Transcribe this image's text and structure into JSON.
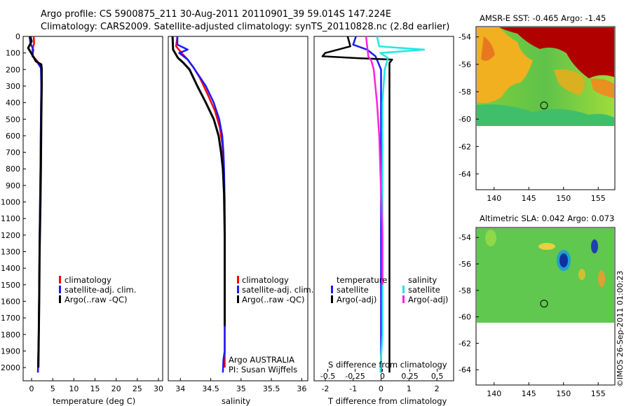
{
  "header": {
    "line1": "Argo profile: CS 5900875_211 30-Aug-2011 20110901_39 59.014S 147.224E",
    "line2": "Climatology: CARS2009. Satellite-adjusted climatology: synTS_20110828.nc (2.8d earlier)"
  },
  "colors": {
    "climatology": "#ff0000",
    "satellite_clim": "#1a1aff",
    "argo": "#000000",
    "sal_satellite": "#22e6e6",
    "sal_argo": "#ff22dd"
  },
  "depth_ticks": [
    "0",
    "100",
    "200",
    "300",
    "400",
    "500",
    "600",
    "700",
    "800",
    "900",
    "1000",
    "1100",
    "1200",
    "1300",
    "1400",
    "1500",
    "1600",
    "1700",
    "1800",
    "1900",
    "2000"
  ],
  "chart_data": [
    {
      "type": "line",
      "xlabel": "temperature (deg C)",
      "xticks": [
        "0",
        "5",
        "10",
        "15",
        "20",
        "25",
        "30"
      ],
      "xlim": [
        -2,
        31
      ],
      "ylim": [
        2080,
        0
      ],
      "legend": [
        "climatology",
        "satellite-adj. clim.",
        "Argo(..raw -QC)"
      ],
      "series": [
        {
          "name": "climatology",
          "x": [
            0.5,
            0.6,
            0.2,
            0.3,
            1.4,
            2.4,
            2.3,
            2.2,
            2.1,
            2.0,
            1.9,
            1.8,
            1.7,
            1.6,
            1.5
          ],
          "y": [
            0,
            40,
            80,
            120,
            150,
            190,
            300,
            500,
            800,
            1000,
            1200,
            1500,
            1800,
            1900,
            2030
          ]
        },
        {
          "name": "satellite-adj. clim.",
          "x": [
            -0.5,
            -0.3,
            0.4,
            0.2,
            1.2,
            2.2,
            2.3,
            2.2,
            2.1,
            2.0,
            1.9,
            1.8,
            1.7,
            1.6,
            1.5
          ],
          "y": [
            0,
            40,
            80,
            120,
            150,
            190,
            300,
            500,
            800,
            1000,
            1200,
            1500,
            1800,
            1900,
            2030
          ]
        },
        {
          "name": "Argo(..raw -QC)",
          "x": [
            -0.3,
            0.0,
            -0.8,
            0.6,
            1.0,
            2.3,
            2.4,
            2.4,
            2.3,
            2.2,
            2.1,
            1.9,
            1.8,
            1.7,
            1.6
          ],
          "y": [
            0,
            30,
            70,
            130,
            150,
            170,
            200,
            300,
            500,
            800,
            1000,
            1300,
            1600,
            1800,
            2000
          ]
        }
      ]
    },
    {
      "type": "line",
      "xlabel": "salinity",
      "xticks": [
        "34",
        "34.5",
        "35",
        "35.5",
        "36"
      ],
      "xlim": [
        33.8,
        36.1
      ],
      "ylim": [
        2080,
        0
      ],
      "legend": [
        "climatology",
        "satellite-adj. clim.",
        "Argo(..raw -QC)"
      ],
      "annotations": [
        "Argo AUSTRALIA",
        "PI: Susan Wijffels"
      ],
      "series": [
        {
          "name": "climatology",
          "x": [
            33.95,
            33.93,
            34.02,
            34.12,
            34.22,
            34.32,
            34.45,
            34.57,
            34.65,
            34.69,
            34.71,
            34.72,
            34.73,
            34.73,
            34.73,
            34.73
          ],
          "y": [
            0,
            60,
            100,
            140,
            190,
            250,
            350,
            450,
            550,
            650,
            750,
            900,
            1100,
            1400,
            1700,
            2000
          ]
        },
        {
          "name": "satellite-adj. clim.",
          "x": [
            33.95,
            33.95,
            34.12,
            33.98,
            34.12,
            34.22,
            34.42,
            34.55,
            34.64,
            34.69,
            34.71,
            34.72,
            34.73,
            34.73,
            34.73,
            34.73,
            34.71,
            34.7
          ],
          "y": [
            0,
            50,
            80,
            100,
            140,
            190,
            300,
            400,
            500,
            600,
            700,
            800,
            1000,
            1400,
            1700,
            1900,
            1950,
            2030
          ]
        },
        {
          "name": "Argo(..raw -QC)",
          "x": [
            33.87,
            33.88,
            33.96,
            34.05,
            34.15,
            34.28,
            34.42,
            34.55,
            34.63,
            34.67,
            34.7,
            34.72,
            34.73,
            34.73,
            34.73
          ],
          "y": [
            0,
            80,
            130,
            160,
            200,
            300,
            400,
            500,
            600,
            700,
            800,
            950,
            1200,
            1500,
            1750
          ]
        }
      ]
    },
    {
      "type": "line",
      "xlabel": "T difference from climatology",
      "xlabel_top": "S difference from climatology",
      "xticks": [
        "-2",
        "-1",
        "0",
        "1",
        "2"
      ],
      "xticks_top": [
        "-0.5",
        "-0.25",
        "0",
        "0.25",
        "0.5"
      ],
      "xlim": [
        -2.4,
        2.6
      ],
      "ylim": [
        2080,
        0
      ],
      "legend_headers": [
        "temperature",
        "salinity"
      ],
      "legend": [
        "satellite",
        "Argo(-adj)",
        "satellite",
        "Argo(-adj)"
      ],
      "series": [
        {
          "name": "temperature satellite",
          "x": [
            -0.9,
            -1.0,
            -0.5,
            -0.2,
            0.0,
            0.0,
            0.0,
            0.0,
            0.0,
            0.0,
            0.0
          ],
          "y": [
            0,
            50,
            80,
            120,
            200,
            400,
            700,
            1000,
            1400,
            1800,
            2030
          ]
        },
        {
          "name": "temperature Argo(-adj)",
          "x": [
            -1.2,
            -1.1,
            -2.0,
            -2.1,
            -1.0,
            0.4,
            0.3,
            0.3,
            0.3,
            0.3,
            0.3,
            0.3,
            0.3,
            0.3
          ],
          "y": [
            0,
            60,
            100,
            120,
            130,
            140,
            160,
            200,
            400,
            700,
            1000,
            1400,
            1800,
            2030
          ]
        },
        {
          "name": "salinity satellite",
          "x": [
            -0.05,
            -0.03,
            0.38,
            -0.02,
            0.05,
            0.02,
            0.0,
            0.0,
            0.0,
            0.0,
            0.0,
            -0.02
          ],
          "y": [
            0,
            60,
            80,
            100,
            130,
            200,
            400,
            700,
            1000,
            1400,
            1800,
            2030
          ]
        },
        {
          "name": "salinity Argo(-adj)",
          "x": [
            -0.15,
            -0.14,
            -0.13,
            -0.1,
            -0.08,
            -0.05,
            -0.03,
            -0.02,
            -0.01,
            0.0,
            0.0
          ],
          "y": [
            0,
            60,
            120,
            150,
            200,
            400,
            600,
            800,
            1000,
            1200,
            1500
          ]
        }
      ]
    }
  ],
  "maps": [
    {
      "title": "AMSR-E SST: -0.465 Argo: -1.45",
      "yticks": [
        "-54",
        "-56",
        "-58",
        "-60",
        "-62",
        "-64"
      ],
      "xticks": [
        "140",
        "145",
        "150",
        "155"
      ],
      "float_marker": {
        "lon": 147.2,
        "lat": -59.0
      }
    },
    {
      "title": "Altimetric SLA: 0.042 Argo: 0.073",
      "yticks": [
        "-54",
        "-56",
        "-58",
        "-60",
        "-62",
        "-64"
      ],
      "xticks": [
        "140",
        "145",
        "150",
        "155"
      ],
      "float_marker": {
        "lon": 147.2,
        "lat": -59.0
      }
    }
  ],
  "credit": "©IMOS 26-Sep-2011 01:00:23"
}
